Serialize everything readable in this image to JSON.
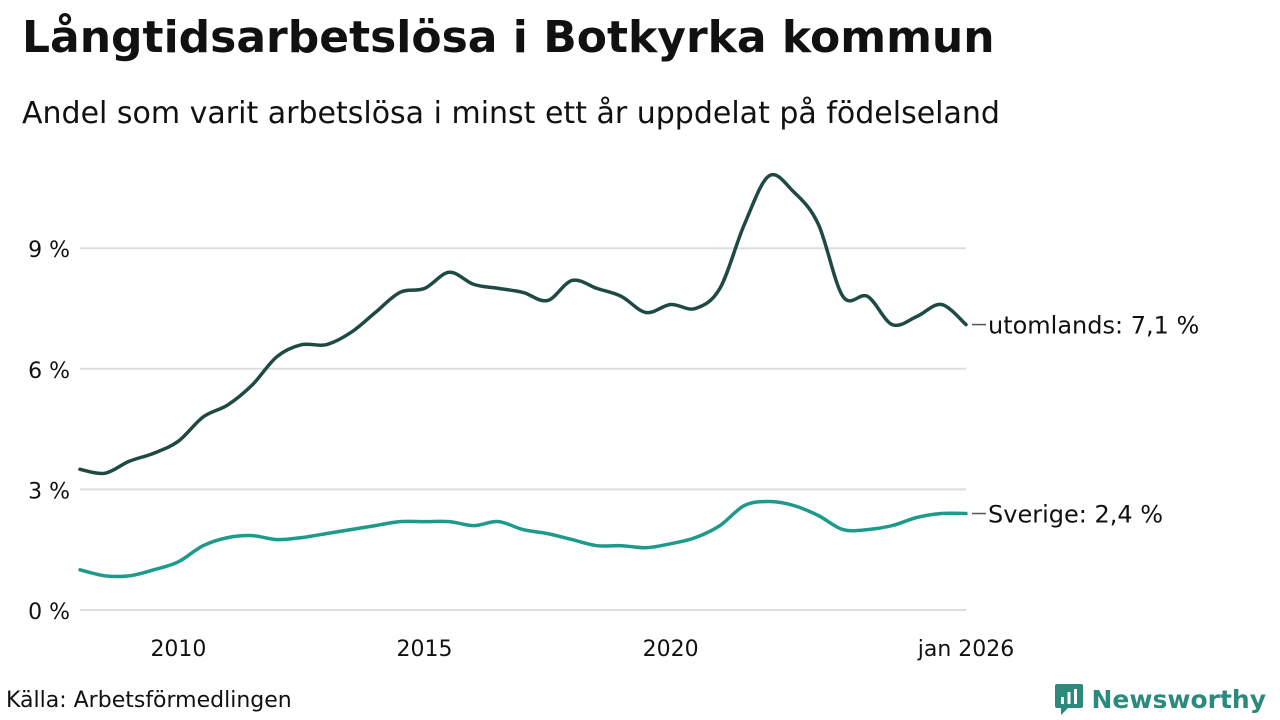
{
  "header": {
    "title": "Långtidsarbetslösa i Botkyrka kommun",
    "subtitle": "Andel som varit arbetslösa i minst ett år uppdelat på födelseland"
  },
  "footer": {
    "source": "Källa: Arbetsförmedlingen",
    "brand": "Newsworthy"
  },
  "colors": {
    "utomlands": "#1e4a43",
    "sverige": "#1e9a8a",
    "grid": "#dddddd",
    "brand": "#2c8a7d"
  },
  "chart_data": {
    "type": "line",
    "title": "Långtidsarbetslösa i Botkyrka kommun",
    "subtitle": "Andel som varit arbetslösa i minst ett år uppdelat på födelseland",
    "ylim": [
      0,
      12
    ],
    "y_ticks": [
      0,
      3,
      6,
      9
    ],
    "y_tick_labels": [
      "0 %",
      "3 %",
      "6 %",
      "9 %"
    ],
    "x_range": [
      "2008-01",
      "2026-01"
    ],
    "x_ticks": [
      "2010-01",
      "2015-01",
      "2020-01",
      "2026-01"
    ],
    "x_tick_labels": [
      "2010",
      "2015",
      "2020",
      "jan 2026"
    ],
    "grid": true,
    "series": [
      {
        "name": "utomlands",
        "end_label": "utomlands: 7,1 %",
        "points": [
          [
            "2008-01",
            3.5
          ],
          [
            "2008-07",
            3.4
          ],
          [
            "2009-01",
            3.7
          ],
          [
            "2009-07",
            3.9
          ],
          [
            "2010-01",
            4.2
          ],
          [
            "2010-07",
            4.8
          ],
          [
            "2011-01",
            5.1
          ],
          [
            "2011-07",
            5.6
          ],
          [
            "2012-01",
            6.3
          ],
          [
            "2012-07",
            6.6
          ],
          [
            "2013-01",
            6.6
          ],
          [
            "2013-07",
            6.9
          ],
          [
            "2014-01",
            7.4
          ],
          [
            "2014-07",
            7.9
          ],
          [
            "2015-01",
            8.0
          ],
          [
            "2015-07",
            8.4
          ],
          [
            "2016-01",
            8.1
          ],
          [
            "2016-07",
            8.0
          ],
          [
            "2017-01",
            7.9
          ],
          [
            "2017-07",
            7.7
          ],
          [
            "2018-01",
            8.2
          ],
          [
            "2018-07",
            8.0
          ],
          [
            "2019-01",
            7.8
          ],
          [
            "2019-07",
            7.4
          ],
          [
            "2020-01",
            7.6
          ],
          [
            "2020-07",
            7.5
          ],
          [
            "2021-01",
            8.0
          ],
          [
            "2021-07",
            9.6
          ],
          [
            "2022-01",
            10.8
          ],
          [
            "2022-07",
            10.4
          ],
          [
            "2023-01",
            9.6
          ],
          [
            "2023-07",
            7.8
          ],
          [
            "2024-01",
            7.8
          ],
          [
            "2024-07",
            7.1
          ],
          [
            "2025-01",
            7.3
          ],
          [
            "2025-07",
            7.6
          ],
          [
            "2026-01",
            7.1
          ]
        ]
      },
      {
        "name": "Sverige",
        "end_label": "Sverige: 2,4 %",
        "points": [
          [
            "2008-01",
            1.0
          ],
          [
            "2008-07",
            0.85
          ],
          [
            "2009-01",
            0.85
          ],
          [
            "2009-07",
            1.0
          ],
          [
            "2010-01",
            1.2
          ],
          [
            "2010-07",
            1.6
          ],
          [
            "2011-01",
            1.8
          ],
          [
            "2011-07",
            1.85
          ],
          [
            "2012-01",
            1.75
          ],
          [
            "2012-07",
            1.8
          ],
          [
            "2013-01",
            1.9
          ],
          [
            "2013-07",
            2.0
          ],
          [
            "2014-01",
            2.1
          ],
          [
            "2014-07",
            2.2
          ],
          [
            "2015-01",
            2.2
          ],
          [
            "2015-07",
            2.2
          ],
          [
            "2016-01",
            2.1
          ],
          [
            "2016-07",
            2.2
          ],
          [
            "2017-01",
            2.0
          ],
          [
            "2017-07",
            1.9
          ],
          [
            "2018-01",
            1.75
          ],
          [
            "2018-07",
            1.6
          ],
          [
            "2019-01",
            1.6
          ],
          [
            "2019-07",
            1.55
          ],
          [
            "2020-01",
            1.65
          ],
          [
            "2020-07",
            1.8
          ],
          [
            "2021-01",
            2.1
          ],
          [
            "2021-07",
            2.6
          ],
          [
            "2022-01",
            2.7
          ],
          [
            "2022-07",
            2.6
          ],
          [
            "2023-01",
            2.35
          ],
          [
            "2023-07",
            2.0
          ],
          [
            "2024-01",
            2.0
          ],
          [
            "2024-07",
            2.1
          ],
          [
            "2025-01",
            2.3
          ],
          [
            "2025-07",
            2.4
          ],
          [
            "2026-01",
            2.4
          ]
        ]
      }
    ]
  }
}
